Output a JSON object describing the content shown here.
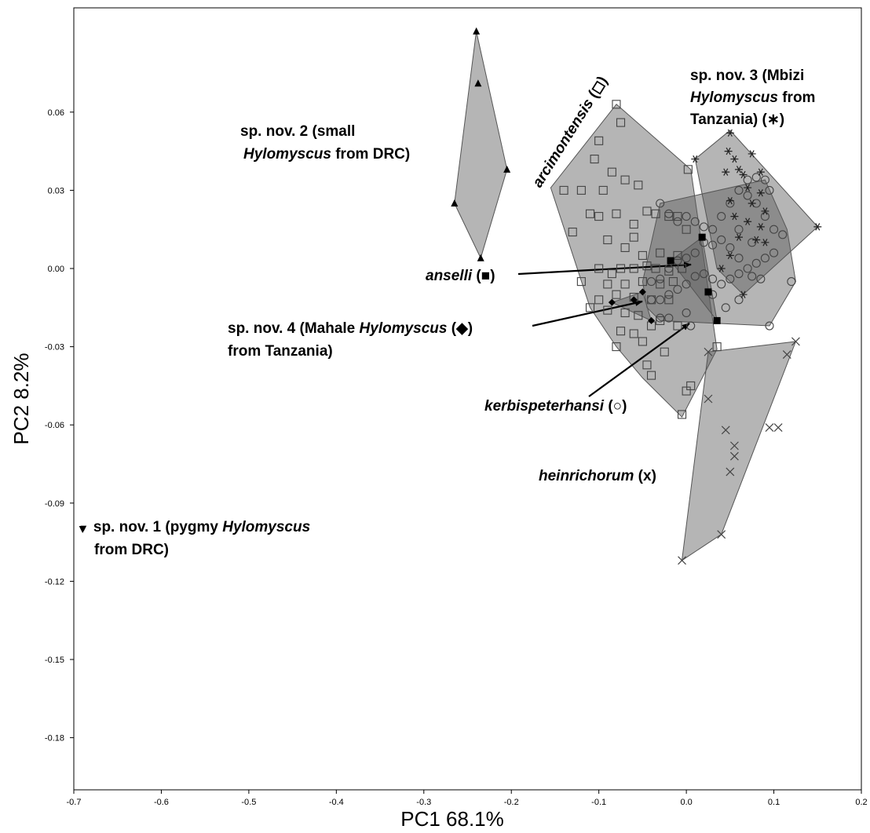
{
  "chart_data": {
    "type": "scatter",
    "xlabel": "PC1 68.1%",
    "ylabel": "PC2 8.2%",
    "xlim": [
      -0.7,
      0.2
    ],
    "ylim": [
      -0.2,
      0.1
    ],
    "x_ticks": [
      "-0.7",
      "-0.6",
      "-0.5",
      "-0.4",
      "-0.3",
      "-0.2",
      "-0.1",
      "0.0",
      "0.1",
      "0.2"
    ],
    "y_ticks": [
      "0.06",
      "0.03",
      "0.00",
      "-0.03",
      "-0.06",
      "-0.09",
      "-0.12",
      "-0.15",
      "-0.18"
    ],
    "grid": false,
    "legend": "none (direct labels)",
    "colors": {
      "hull": "#8c8c8c",
      "hull_fill": "rgba(90,90,90,0.45)",
      "marker": "#444444",
      "ink": "#000000"
    },
    "annotations": {
      "sp1": {
        "symbol": "▼",
        "part1": "sp. nov. 1  (pygmy ",
        "part2": "Hylomyscus",
        "part3": "from DRC)"
      },
      "sp2": {
        "part1": "sp. nov. 2 (small",
        "part2": "Hylomyscus",
        "part3": " from DRC)"
      },
      "sp3": {
        "part1": "sp. nov. 3 (Mbizi",
        "part2": "Hylomyscus",
        "part3": " from",
        "part4": "Tanzania) (∗)"
      },
      "sp4": {
        "part1": "sp. nov. 4 (Mahale ",
        "part2": "Hylomyscus",
        "part3": " (◆)",
        "part4": "from Tanzania)"
      },
      "arcimontensis": {
        "name": "arcimontensis",
        "symbol": " (◻)"
      },
      "anselli": {
        "name": "anselli",
        "symbol": " (■)"
      },
      "kerbispeterhansi": {
        "name": "kerbispeterhansi",
        "symbol": " (○)"
      },
      "heinrichorum": {
        "name": "heinrichorum",
        "symbol": " (x)"
      }
    },
    "series": [
      {
        "name": "sp. nov. 1",
        "marker": "triangle-down",
        "points": [
          [
            -0.69,
            -0.1
          ]
        ]
      },
      {
        "name": "sp. nov. 2",
        "marker": "triangle-up",
        "hull": [
          [
            -0.24,
            0.091
          ],
          [
            -0.205,
            0.038
          ],
          [
            -0.235,
            0.004
          ],
          [
            -0.265,
            0.025
          ]
        ],
        "points": [
          [
            -0.24,
            0.091
          ],
          [
            -0.238,
            0.071
          ],
          [
            -0.205,
            0.038
          ],
          [
            -0.265,
            0.025
          ],
          [
            -0.235,
            0.004
          ]
        ]
      },
      {
        "name": "arcimontensis",
        "marker": "square",
        "hull": [
          [
            -0.08,
            0.063
          ],
          [
            0.005,
            0.038
          ],
          [
            0.035,
            -0.031
          ],
          [
            -0.005,
            -0.057
          ],
          [
            -0.05,
            -0.042
          ],
          [
            -0.08,
            -0.03
          ],
          [
            -0.11,
            -0.015
          ],
          [
            -0.155,
            0.031
          ]
        ],
        "points": [
          [
            -0.08,
            0.063
          ],
          [
            -0.075,
            0.056
          ],
          [
            -0.1,
            0.049
          ],
          [
            -0.105,
            0.042
          ],
          [
            -0.085,
            0.037
          ],
          [
            -0.14,
            0.03
          ],
          [
            -0.055,
            0.032
          ],
          [
            -0.12,
            0.03
          ],
          [
            -0.095,
            0.03
          ],
          [
            -0.07,
            0.034
          ],
          [
            0.002,
            0.038
          ],
          [
            -0.11,
            0.021
          ],
          [
            -0.1,
            0.02
          ],
          [
            -0.08,
            0.021
          ],
          [
            -0.045,
            0.022
          ],
          [
            -0.035,
            0.021
          ],
          [
            -0.13,
            0.014
          ],
          [
            -0.06,
            0.017
          ],
          [
            -0.06,
            0.012
          ],
          [
            -0.09,
            0.011
          ],
          [
            -0.07,
            0.008
          ],
          [
            -0.02,
            0.02
          ],
          [
            -0.01,
            0.02
          ],
          [
            0.0,
            0.015
          ],
          [
            -0.05,
            0.005
          ],
          [
            -0.03,
            0.006
          ],
          [
            -0.01,
            0.005
          ],
          [
            -0.1,
            0.0
          ],
          [
            -0.085,
            -0.002
          ],
          [
            -0.075,
            0.0
          ],
          [
            -0.06,
            0.0
          ],
          [
            -0.045,
            0.001
          ],
          [
            -0.035,
            0.0
          ],
          [
            -0.02,
            -0.001
          ],
          [
            -0.005,
            0.0
          ],
          [
            -0.12,
            -0.005
          ],
          [
            -0.09,
            -0.006
          ],
          [
            -0.07,
            -0.006
          ],
          [
            -0.05,
            -0.005
          ],
          [
            -0.03,
            -0.006
          ],
          [
            -0.015,
            -0.005
          ],
          [
            -0.1,
            -0.012
          ],
          [
            -0.08,
            -0.01
          ],
          [
            -0.06,
            -0.011
          ],
          [
            -0.04,
            -0.012
          ],
          [
            -0.02,
            -0.012
          ],
          [
            -0.11,
            -0.015
          ],
          [
            -0.09,
            -0.016
          ],
          [
            -0.07,
            -0.017
          ],
          [
            -0.055,
            -0.018
          ],
          [
            -0.03,
            -0.02
          ],
          [
            -0.01,
            -0.022
          ],
          [
            -0.075,
            -0.024
          ],
          [
            -0.06,
            -0.025
          ],
          [
            -0.04,
            -0.022
          ],
          [
            -0.08,
            -0.03
          ],
          [
            -0.05,
            -0.028
          ],
          [
            -0.025,
            -0.032
          ],
          [
            -0.045,
            -0.037
          ],
          [
            -0.04,
            -0.041
          ],
          [
            0.005,
            -0.045
          ],
          [
            0.0,
            -0.047
          ],
          [
            -0.005,
            -0.056
          ],
          [
            0.035,
            -0.03
          ]
        ]
      },
      {
        "name": "kerbispeterhansi",
        "marker": "circle",
        "hull": [
          [
            -0.03,
            0.025
          ],
          [
            0.09,
            0.034
          ],
          [
            0.115,
            0.015
          ],
          [
            0.125,
            -0.005
          ],
          [
            0.095,
            -0.022
          ],
          [
            -0.03,
            -0.02
          ],
          [
            -0.045,
            -0.015
          ],
          [
            -0.05,
            -0.005
          ]
        ],
        "points": [
          [
            -0.03,
            0.025
          ],
          [
            -0.02,
            0.021
          ],
          [
            -0.01,
            0.018
          ],
          [
            0.0,
            0.02
          ],
          [
            0.01,
            0.018
          ],
          [
            0.02,
            0.016
          ],
          [
            0.03,
            0.015
          ],
          [
            0.04,
            0.02
          ],
          [
            0.05,
            0.025
          ],
          [
            0.06,
            0.03
          ],
          [
            0.07,
            0.034
          ],
          [
            0.08,
            0.035
          ],
          [
            0.09,
            0.034
          ],
          [
            0.07,
            0.028
          ],
          [
            0.08,
            0.025
          ],
          [
            0.09,
            0.02
          ],
          [
            0.1,
            0.015
          ],
          [
            0.11,
            0.013
          ],
          [
            0.1,
            0.006
          ],
          [
            0.09,
            0.004
          ],
          [
            0.08,
            0.002
          ],
          [
            0.07,
            0.0
          ],
          [
            0.06,
            0.004
          ],
          [
            0.05,
            0.008
          ],
          [
            0.04,
            0.011
          ],
          [
            0.03,
            0.009
          ],
          [
            0.02,
            0.01
          ],
          [
            0.01,
            0.006
          ],
          [
            0.0,
            0.004
          ],
          [
            -0.01,
            0.003
          ],
          [
            -0.02,
            0.0
          ],
          [
            -0.03,
            -0.004
          ],
          [
            -0.04,
            -0.005
          ],
          [
            -0.04,
            -0.012
          ],
          [
            -0.03,
            -0.012
          ],
          [
            -0.02,
            -0.01
          ],
          [
            -0.01,
            -0.008
          ],
          [
            0.0,
            -0.006
          ],
          [
            0.01,
            -0.003
          ],
          [
            0.02,
            -0.002
          ],
          [
            0.03,
            -0.004
          ],
          [
            0.04,
            -0.006
          ],
          [
            0.05,
            -0.004
          ],
          [
            0.06,
            -0.002
          ],
          [
            0.075,
            -0.003
          ],
          [
            0.085,
            -0.004
          ],
          [
            0.12,
            -0.005
          ],
          [
            0.06,
            -0.012
          ],
          [
            0.045,
            -0.015
          ],
          [
            0.03,
            -0.01
          ],
          [
            0.0,
            -0.017
          ],
          [
            -0.02,
            -0.019
          ],
          [
            -0.03,
            -0.019
          ],
          [
            0.005,
            -0.022
          ],
          [
            0.095,
            -0.022
          ],
          [
            0.095,
            0.03
          ],
          [
            0.075,
            0.01
          ],
          [
            0.06,
            0.015
          ]
        ]
      },
      {
        "name": "sp. nov. 3",
        "marker": "asterisk",
        "hull": [
          [
            0.05,
            0.053
          ],
          [
            0.15,
            0.016
          ],
          [
            0.065,
            -0.01
          ],
          [
            0.035,
            0.0
          ],
          [
            0.01,
            0.042
          ]
        ],
        "points": [
          [
            0.05,
            0.052
          ],
          [
            0.048,
            0.045
          ],
          [
            0.055,
            0.042
          ],
          [
            0.075,
            0.044
          ],
          [
            0.06,
            0.038
          ],
          [
            0.045,
            0.037
          ],
          [
            0.065,
            0.036
          ],
          [
            0.085,
            0.037
          ],
          [
            0.07,
            0.031
          ],
          [
            0.085,
            0.029
          ],
          [
            0.05,
            0.026
          ],
          [
            0.075,
            0.025
          ],
          [
            0.055,
            0.02
          ],
          [
            0.07,
            0.018
          ],
          [
            0.085,
            0.016
          ],
          [
            0.09,
            0.022
          ],
          [
            0.06,
            0.012
          ],
          [
            0.08,
            0.011
          ],
          [
            0.05,
            0.005
          ],
          [
            0.04,
            0.0
          ],
          [
            0.15,
            0.016
          ],
          [
            0.065,
            -0.01
          ],
          [
            0.01,
            0.042
          ],
          [
            0.09,
            0.01
          ]
        ]
      },
      {
        "name": "anselli",
        "marker": "filled-square",
        "hull": [
          [
            0.018,
            0.012
          ],
          [
            0.035,
            -0.02
          ],
          [
            -0.018,
            0.003
          ]
        ],
        "points": [
          [
            0.018,
            0.012
          ],
          [
            -0.018,
            0.003
          ],
          [
            0.025,
            -0.009
          ],
          [
            0.035,
            -0.02
          ]
        ]
      },
      {
        "name": "sp. nov. 4",
        "marker": "filled-diamond",
        "hull": [
          [
            -0.085,
            -0.013
          ],
          [
            -0.05,
            -0.009
          ],
          [
            -0.04,
            -0.02
          ]
        ],
        "points": [
          [
            -0.085,
            -0.013
          ],
          [
            -0.06,
            -0.012
          ],
          [
            -0.05,
            -0.009
          ],
          [
            -0.04,
            -0.02
          ]
        ]
      },
      {
        "name": "heinrichorum",
        "marker": "x",
        "hull": [
          [
            0.025,
            -0.032
          ],
          [
            0.125,
            -0.028
          ],
          [
            0.04,
            -0.102
          ],
          [
            -0.005,
            -0.112
          ]
        ],
        "points": [
          [
            0.025,
            -0.032
          ],
          [
            0.125,
            -0.028
          ],
          [
            0.115,
            -0.033
          ],
          [
            0.025,
            -0.05
          ],
          [
            0.095,
            -0.061
          ],
          [
            0.105,
            -0.061
          ],
          [
            0.045,
            -0.062
          ],
          [
            0.055,
            -0.068
          ],
          [
            0.055,
            -0.072
          ],
          [
            0.05,
            -0.078
          ],
          [
            0.04,
            -0.102
          ],
          [
            -0.005,
            -0.112
          ]
        ]
      }
    ]
  }
}
